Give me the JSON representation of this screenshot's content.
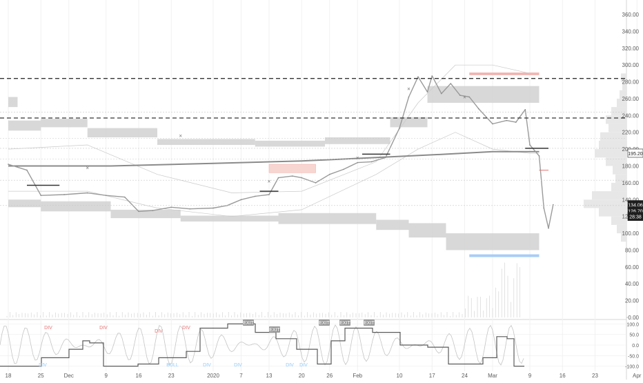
{
  "chart_data": [
    {
      "type": "line",
      "xlabel": "",
      "ylabel": "",
      "x_ticks": [
        "18",
        "25",
        "Dec",
        "9",
        "16",
        "23",
        "2020",
        "7",
        "13",
        "20",
        "26",
        "Feb",
        "10",
        "17",
        "24",
        "Mar",
        "9",
        "16",
        "23",
        "Apr"
      ],
      "y_ticks": [
        0,
        20,
        40,
        60,
        80,
        100,
        120,
        140,
        160,
        180,
        200,
        220,
        240,
        260,
        280,
        300,
        320,
        340,
        360
      ],
      "ylim": [
        0,
        370
      ],
      "series": [
        {
          "x": [
            "Nov 18",
            "Nov 22",
            "Nov 25",
            "Nov 30",
            "Dec 5",
            "Dec 9",
            "Dec 13",
            "Dec 16",
            "Dec 19",
            "Dec 23",
            "Dec 27",
            "Jan 1",
            "Jan 4",
            "Jan 7",
            "Jan 10",
            "Jan 13",
            "Jan 15",
            "Jan 18",
            "Jan 20",
            "Jan 23",
            "Jan 26",
            "Jan 29",
            "Feb 1",
            "Feb 4",
            "Feb 7",
            "Feb 10",
            "Feb 12",
            "Feb 14",
            "Feb 16",
            "Feb 17",
            "Feb 19",
            "Feb 21",
            "Feb 23",
            "Feb 25",
            "Feb 27",
            "Mar 1",
            "Mar 4",
            "Mar 6",
            "Mar 8",
            "Mar 9",
            "Mar 11",
            "Mar 12",
            "Mar 13",
            "Mar 14"
          ],
          "values": [
            182,
            175,
            145,
            146,
            148,
            145,
            143,
            126,
            127,
            131,
            129,
            130,
            133,
            140,
            144,
            146,
            166,
            168,
            166,
            160,
            170,
            176,
            184,
            185,
            190,
            225,
            262,
            286,
            268,
            287,
            266,
            278,
            264,
            262,
            248,
            230,
            234,
            232,
            247,
            205,
            192,
            130,
            106,
            134
          ]
        }
      ],
      "price_labels": [
        "134.06",
        "126.70",
        "195.20",
        "28:38"
      ],
      "price_label_colors": {
        "last": "#1e1e1e",
        "time": "#1e1e1e",
        "level": "#1e1e1e"
      },
      "dashed_levels": [
        284,
        237
      ],
      "markers": [
        "×",
        "×",
        "×",
        "×",
        "▲",
        "▼"
      ],
      "grid": true,
      "legend": "none"
    },
    {
      "type": "line",
      "title": "",
      "y_ticks": [
        "100.0",
        "50.0",
        "0.0",
        "-50.0",
        "-100.0"
      ],
      "ylim": [
        -115,
        115
      ],
      "signals": [
        "DIV",
        "DIV",
        "DIV",
        "DIV",
        "EXIT",
        "EXIT",
        "EXIT",
        "EXIT",
        "EXIT",
        "BULL",
        "DIV",
        "DIV",
        "DIV",
        "DIV",
        "DIV"
      ],
      "signal_colors": {
        "bear": "#e57373",
        "bull": "#90caf9",
        "exit": "#888888"
      },
      "grid": true,
      "legend": "none"
    }
  ]
}
